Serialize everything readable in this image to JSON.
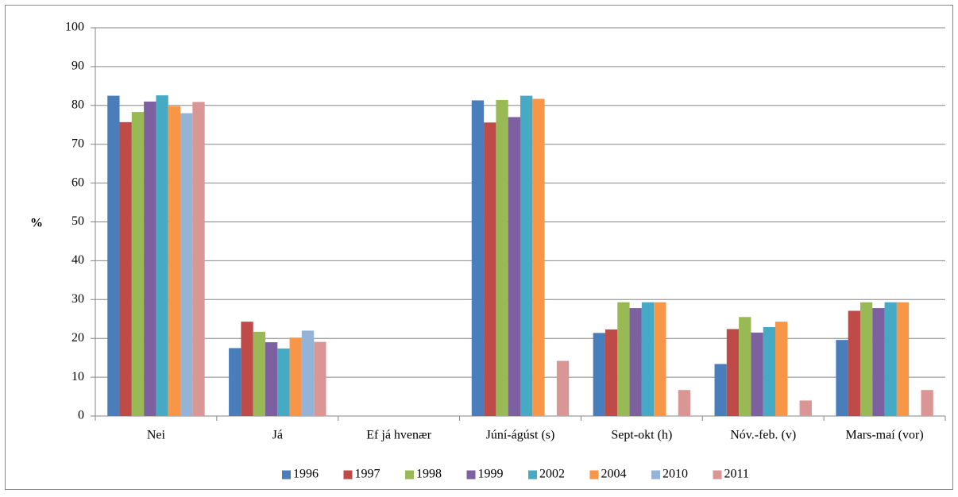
{
  "chart_data": {
    "type": "bar",
    "y_label": "%",
    "categories": [
      "Nei",
      "Já",
      "Ef já hvenær",
      "Júní-ágúst (s)",
      "Sept-okt (h)",
      "Nóv.-feb. (v)",
      "Mars-maí (vor)"
    ],
    "series": [
      {
        "name": "1996",
        "color": "#4a7ebb",
        "values": [
          82.5,
          17.5,
          null,
          81.3,
          21.4,
          13.4,
          19.6
        ]
      },
      {
        "name": "1997",
        "color": "#be4b48",
        "values": [
          75.7,
          24.3,
          null,
          75.6,
          22.3,
          22.4,
          27.1
        ]
      },
      {
        "name": "1998",
        "color": "#98b954",
        "values": [
          78.3,
          21.7,
          null,
          81.4,
          29.3,
          25.5,
          29.3
        ]
      },
      {
        "name": "1999",
        "color": "#7d60a0",
        "values": [
          81.0,
          19.0,
          null,
          77.0,
          27.8,
          21.5,
          27.8
        ]
      },
      {
        "name": "2002",
        "color": "#46aac5",
        "values": [
          82.6,
          17.4,
          null,
          82.5,
          29.3,
          22.9,
          29.3
        ]
      },
      {
        "name": "2004",
        "color": "#f79646",
        "values": [
          79.8,
          20.2,
          null,
          81.7,
          29.3,
          24.3,
          29.3
        ]
      },
      {
        "name": "2010",
        "color": "#95b3d7",
        "values": [
          78.0,
          22.0,
          null,
          null,
          null,
          null,
          null
        ]
      },
      {
        "name": "2011",
        "color": "#d99694",
        "values": [
          80.9,
          19.1,
          null,
          14.2,
          6.7,
          4.0,
          6.7
        ]
      }
    ],
    "ylim": [
      0,
      100
    ],
    "yticks": [
      0,
      10,
      20,
      30,
      40,
      50,
      60,
      70,
      80,
      90,
      100
    ],
    "grid": true,
    "legend": "bottom"
  }
}
